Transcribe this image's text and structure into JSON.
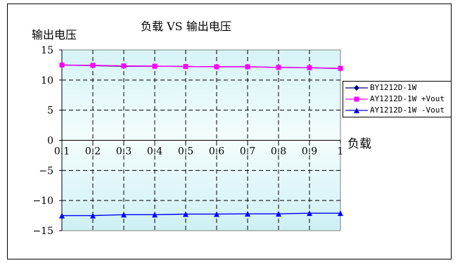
{
  "chart_data": {
    "type": "line",
    "title": "负载 VS 输出电压",
    "ylabel": "输出电压",
    "xlabel": "负载",
    "x": [
      "0.1",
      "0.2",
      "0.3",
      "0.4",
      "0.5",
      "0.6",
      "0.7",
      "0.8",
      "0.9",
      "1"
    ],
    "x_tick_labels": [
      "0.1",
      "0.2",
      "0.3",
      "0.4",
      "0.5",
      "0.6",
      "0.7",
      "0.8",
      "0.9",
      "1"
    ],
    "ylim": [
      -15,
      15
    ],
    "y_ticks": [
      15,
      10,
      5,
      0,
      -5,
      -10,
      -15
    ],
    "y_tick_labels": [
      "15",
      "10",
      "5",
      "0",
      "−5",
      "−10",
      "−15"
    ],
    "grid": true,
    "legend_position": "right",
    "series": [
      {
        "name": "BY1212D-1W",
        "color": "#000080",
        "marker": "diamond",
        "values": [
          12.5,
          12.4,
          12.3,
          12.3,
          12.25,
          12.2,
          12.2,
          12.1,
          12.05,
          11.9
        ]
      },
      {
        "name": "AY1212D-1W +Vout",
        "color": "#ff00ff",
        "marker": "square",
        "values": [
          12.5,
          12.45,
          12.35,
          12.3,
          12.25,
          12.2,
          12.2,
          12.1,
          12.05,
          11.95
        ]
      },
      {
        "name": "AY1212D-1W -Vout",
        "color": "#0000ff",
        "marker": "triangle",
        "values": [
          -12.5,
          -12.5,
          -12.35,
          -12.35,
          -12.25,
          -12.25,
          -12.2,
          -12.2,
          -12.1,
          -12.1
        ]
      }
    ]
  }
}
